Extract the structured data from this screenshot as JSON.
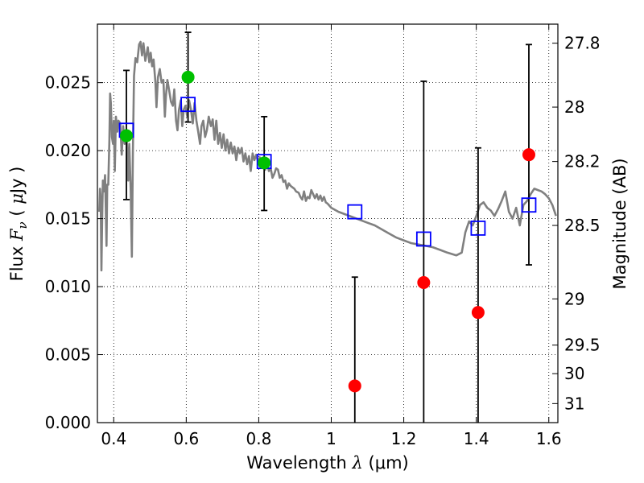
{
  "chart_data": {
    "type": "scatter",
    "xlabel": "Wavelength  λ (μm)",
    "xlabel_parts": {
      "text": "Wavelength",
      "symbol": "λ",
      "unit": "(μm)"
    },
    "ylabel_parts": {
      "text": "Flux",
      "symbol": "F",
      "subscript": "ν",
      "unit_open": "( ",
      "unit_mu": "μ",
      "unit_rest": "Jy )"
    },
    "y2label": "Magnitude (AB)",
    "xlim": [
      0.355,
      1.625
    ],
    "ylim": [
      0.0,
      0.0293
    ],
    "x_ticks": [
      0.4,
      0.6,
      0.8,
      1.0,
      1.2,
      1.4,
      1.6
    ],
    "x_tick_labels": [
      "0.4",
      "0.6",
      "0.8",
      "1",
      "1.2",
      "1.4",
      "1.6"
    ],
    "y_ticks": [
      0.0,
      0.005,
      0.01,
      0.015,
      0.02,
      0.025
    ],
    "y_tick_labels": [
      "0.000",
      "0.005",
      "0.010",
      "0.015",
      "0.020",
      "0.025"
    ],
    "mag_ticks": [
      {
        "flux": 0.0279,
        "label": "27.8"
      },
      {
        "flux": 0.0232,
        "label": "28"
      },
      {
        "flux": 0.0192,
        "label": "28.2"
      },
      {
        "flux": 0.0145,
        "label": "28.5"
      },
      {
        "flux": 0.0091,
        "label": "29"
      },
      {
        "flux": 0.0057,
        "label": "29.5"
      },
      {
        "flux": 0.0036,
        "label": "30"
      },
      {
        "flux": 0.0014,
        "label": "31"
      }
    ],
    "grid": true,
    "series": [
      {
        "name": "model spectrum",
        "style": "line",
        "color": "#808080",
        "points": [
          [
            0.36,
            0.0155
          ],
          [
            0.362,
            0.0172
          ],
          [
            0.364,
            0.0165
          ],
          [
            0.366,
            0.0112
          ],
          [
            0.368,
            0.015
          ],
          [
            0.37,
            0.0178
          ],
          [
            0.373,
            0.017
          ],
          [
            0.376,
            0.0182
          ],
          [
            0.378,
            0.0158
          ],
          [
            0.38,
            0.013
          ],
          [
            0.382,
            0.0175
          ],
          [
            0.385,
            0.0175
          ],
          [
            0.388,
            0.0208
          ],
          [
            0.39,
            0.0242
          ],
          [
            0.392,
            0.0235
          ],
          [
            0.395,
            0.021
          ],
          [
            0.398,
            0.0205
          ],
          [
            0.4,
            0.0222
          ],
          [
            0.403,
            0.0185
          ],
          [
            0.406,
            0.0225
          ],
          [
            0.41,
            0.0214
          ],
          [
            0.413,
            0.0222
          ],
          [
            0.418,
            0.022
          ],
          [
            0.422,
            0.0197
          ],
          [
            0.426,
            0.0218
          ],
          [
            0.43,
            0.0205
          ],
          [
            0.433,
            0.0213
          ],
          [
            0.436,
            0.0208
          ],
          [
            0.44,
            0.0178
          ],
          [
            0.443,
            0.0205
          ],
          [
            0.447,
            0.017
          ],
          [
            0.45,
            0.0122
          ],
          [
            0.453,
            0.02
          ],
          [
            0.456,
            0.0255
          ],
          [
            0.46,
            0.0268
          ],
          [
            0.465,
            0.0265
          ],
          [
            0.47,
            0.0278
          ],
          [
            0.474,
            0.028
          ],
          [
            0.478,
            0.027
          ],
          [
            0.482,
            0.0279
          ],
          [
            0.487,
            0.0266
          ],
          [
            0.49,
            0.027
          ],
          [
            0.494,
            0.0276
          ],
          [
            0.498,
            0.0265
          ],
          [
            0.502,
            0.0272
          ],
          [
            0.506,
            0.0262
          ],
          [
            0.51,
            0.0267
          ],
          [
            0.515,
            0.025
          ],
          [
            0.518,
            0.0232
          ],
          [
            0.522,
            0.0254
          ],
          [
            0.527,
            0.026
          ],
          [
            0.532,
            0.025
          ],
          [
            0.537,
            0.0252
          ],
          [
            0.541,
            0.0225
          ],
          [
            0.544,
            0.024
          ],
          [
            0.548,
            0.0252
          ],
          [
            0.553,
            0.0244
          ],
          [
            0.558,
            0.0236
          ],
          [
            0.563,
            0.0233
          ],
          [
            0.567,
            0.0245
          ],
          [
            0.572,
            0.0222
          ],
          [
            0.576,
            0.0215
          ],
          [
            0.58,
            0.023
          ],
          [
            0.585,
            0.0237
          ],
          [
            0.589,
            0.0218
          ],
          [
            0.593,
            0.023
          ],
          [
            0.598,
            0.0233
          ],
          [
            0.603,
            0.0225
          ],
          [
            0.608,
            0.0237
          ],
          [
            0.613,
            0.023
          ],
          [
            0.618,
            0.022
          ],
          [
            0.623,
            0.0235
          ],
          [
            0.628,
            0.0222
          ],
          [
            0.633,
            0.0214
          ],
          [
            0.638,
            0.0205
          ],
          [
            0.642,
            0.0218
          ],
          [
            0.647,
            0.0222
          ],
          [
            0.652,
            0.021
          ],
          [
            0.657,
            0.0215
          ],
          [
            0.662,
            0.0225
          ],
          [
            0.668,
            0.0218
          ],
          [
            0.673,
            0.0223
          ],
          [
            0.678,
            0.0208
          ],
          [
            0.683,
            0.0222
          ],
          [
            0.688,
            0.0205
          ],
          [
            0.693,
            0.0213
          ],
          [
            0.698,
            0.0202
          ],
          [
            0.703,
            0.0212
          ],
          [
            0.708,
            0.02
          ],
          [
            0.713,
            0.0208
          ],
          [
            0.718,
            0.0198
          ],
          [
            0.723,
            0.0206
          ],
          [
            0.728,
            0.0198
          ],
          [
            0.733,
            0.0203
          ],
          [
            0.738,
            0.0193
          ],
          [
            0.743,
            0.0202
          ],
          [
            0.748,
            0.0198
          ],
          [
            0.753,
            0.0202
          ],
          [
            0.758,
            0.0192
          ],
          [
            0.763,
            0.0198
          ],
          [
            0.768,
            0.019
          ],
          [
            0.773,
            0.0196
          ],
          [
            0.778,
            0.0185
          ],
          [
            0.783,
            0.0198
          ],
          [
            0.788,
            0.0193
          ],
          [
            0.793,
            0.0197
          ],
          [
            0.798,
            0.0192
          ],
          [
            0.803,
            0.0195
          ],
          [
            0.808,
            0.019
          ],
          [
            0.813,
            0.0192
          ],
          [
            0.818,
            0.0186
          ],
          [
            0.823,
            0.0191
          ],
          [
            0.828,
            0.0185
          ],
          [
            0.833,
            0.0187
          ],
          [
            0.838,
            0.018
          ],
          [
            0.843,
            0.0183
          ],
          [
            0.848,
            0.0187
          ],
          [
            0.853,
            0.0186
          ],
          [
            0.858,
            0.018
          ],
          [
            0.863,
            0.0182
          ],
          [
            0.868,
            0.0177
          ],
          [
            0.873,
            0.0178
          ],
          [
            0.878,
            0.0172
          ],
          [
            0.883,
            0.0176
          ],
          [
            0.888,
            0.0174
          ],
          [
            0.893,
            0.0173
          ],
          [
            0.898,
            0.0172
          ],
          [
            0.903,
            0.017
          ],
          [
            0.91,
            0.0169
          ],
          [
            0.915,
            0.0166
          ],
          [
            0.92,
            0.0164
          ],
          [
            0.925,
            0.017
          ],
          [
            0.93,
            0.0163
          ],
          [
            0.935,
            0.0166
          ],
          [
            0.94,
            0.0165
          ],
          [
            0.945,
            0.0171
          ],
          [
            0.95,
            0.0168
          ],
          [
            0.955,
            0.0165
          ],
          [
            0.96,
            0.0168
          ],
          [
            0.965,
            0.0164
          ],
          [
            0.97,
            0.0167
          ],
          [
            0.975,
            0.0163
          ],
          [
            0.98,
            0.0166
          ],
          [
            0.985,
            0.0162
          ],
          [
            0.99,
            0.0161
          ],
          [
            1.0,
            0.0158
          ],
          [
            1.02,
            0.0155
          ],
          [
            1.04,
            0.0153
          ],
          [
            1.06,
            0.0151
          ],
          [
            1.08,
            0.0149
          ],
          [
            1.1,
            0.0147
          ],
          [
            1.12,
            0.0145
          ],
          [
            1.14,
            0.0142
          ],
          [
            1.16,
            0.0139
          ],
          [
            1.18,
            0.0136
          ],
          [
            1.2,
            0.0134
          ],
          [
            1.22,
            0.0132
          ],
          [
            1.24,
            0.0131
          ],
          [
            1.26,
            0.013
          ],
          [
            1.28,
            0.0129
          ],
          [
            1.3,
            0.0127
          ],
          [
            1.32,
            0.0125
          ],
          [
            1.345,
            0.0123
          ],
          [
            1.36,
            0.0125
          ],
          [
            1.37,
            0.014
          ],
          [
            1.38,
            0.0148
          ],
          [
            1.39,
            0.0145
          ],
          [
            1.4,
            0.0152
          ],
          [
            1.41,
            0.016
          ],
          [
            1.42,
            0.0162
          ],
          [
            1.43,
            0.0158
          ],
          [
            1.44,
            0.0156
          ],
          [
            1.45,
            0.0152
          ],
          [
            1.46,
            0.0157
          ],
          [
            1.47,
            0.0163
          ],
          [
            1.48,
            0.017
          ],
          [
            1.49,
            0.0155
          ],
          [
            1.5,
            0.015
          ],
          [
            1.51,
            0.0158
          ],
          [
            1.52,
            0.0145
          ],
          [
            1.53,
            0.016
          ],
          [
            1.54,
            0.0163
          ],
          [
            1.55,
            0.0168
          ],
          [
            1.56,
            0.0172
          ],
          [
            1.57,
            0.0171
          ],
          [
            1.58,
            0.017
          ],
          [
            1.59,
            0.0168
          ],
          [
            1.6,
            0.0165
          ],
          [
            1.61,
            0.016
          ],
          [
            1.62,
            0.0152
          ]
        ]
      },
      {
        "name": "model synthetic photometry",
        "style": "open-square",
        "color": "#0000ff",
        "x": [
          0.435,
          0.605,
          0.815,
          1.065,
          1.255,
          1.405,
          1.545
        ],
        "y": [
          0.0215,
          0.0234,
          0.0192,
          0.0155,
          0.0135,
          0.0143,
          0.016
        ]
      },
      {
        "name": "observed detections",
        "style": "filled-circle",
        "color": "#00c000",
        "x": [
          0.435,
          0.605,
          0.815
        ],
        "y": [
          0.0211,
          0.0254,
          0.0191
        ],
        "err_low": [
          0.0047,
          0.0033,
          0.0035
        ],
        "err_high": [
          0.0048,
          0.0033,
          0.0034
        ]
      },
      {
        "name": "observed upper limits",
        "style": "filled-circle",
        "color": "#ff0000",
        "x": [
          1.065,
          1.255,
          1.405,
          1.545
        ],
        "y": [
          0.0027,
          0.0103,
          0.0081,
          0.0197
        ],
        "err_low": [
          0.003,
          0.0103,
          0.0081,
          0.0081
        ],
        "err_high": [
          0.008,
          0.0148,
          0.0121,
          0.0081
        ]
      }
    ]
  }
}
